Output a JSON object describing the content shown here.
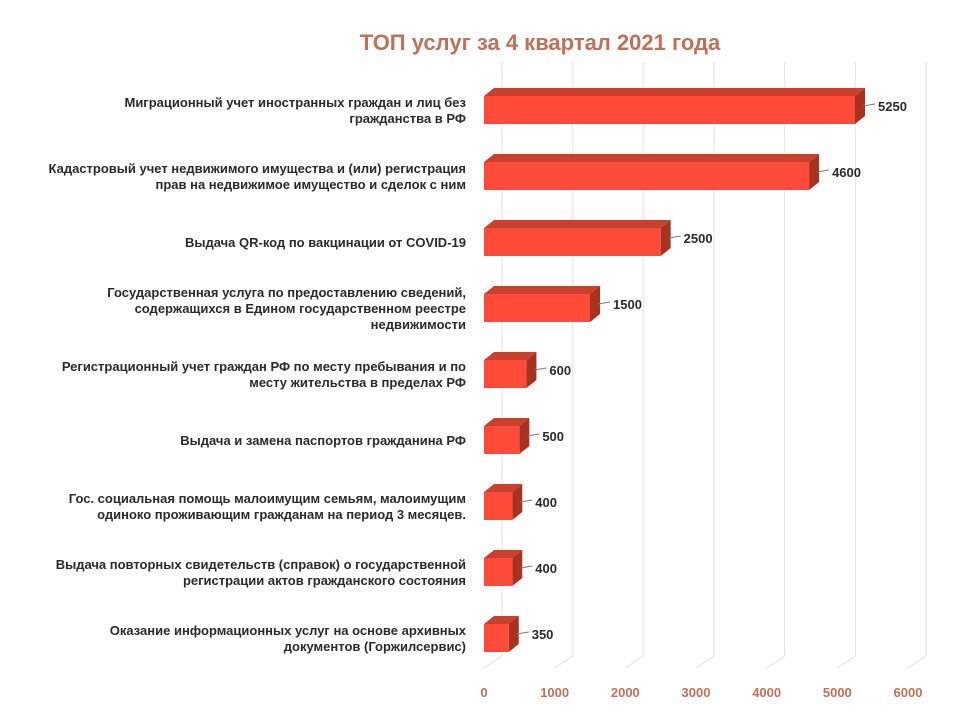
{
  "chart_data": {
    "type": "bar",
    "orientation": "horizontal",
    "title": "ТОП услуг за 4 квартал 2021 года",
    "xlabel": "",
    "ylabel": "",
    "xlim": [
      0,
      6000
    ],
    "ticks": [
      0,
      1000,
      2000,
      3000,
      4000,
      5000,
      6000
    ],
    "grid": true,
    "legend": "none",
    "colors": {
      "bar_front": "#ff4b38",
      "bar_top": "#c9402f",
      "bar_side": "#a8321f",
      "title": "#c0715a",
      "tick": "#c0715a"
    },
    "categories": [
      [
        "Миграционный учет иностранных граждан и лиц без",
        "гражданства в РФ"
      ],
      [
        "Кадастровый учет недвижимого имущества и (или)  регистрация",
        "прав на недвижимое имущество и сделок с ним"
      ],
      [
        "Выдача QR-код по вакцинации от COVID-19"
      ],
      [
        "Государственная услуга по предоставлению сведений,",
        "содержащихся в Едином государственном реестре",
        "недвижимости"
      ],
      [
        "Регистрационный учет граждан РФ по месту пребывания и по",
        "месту жительства в пределах РФ"
      ],
      [
        "Выдача и замена паспортов гражданина РФ"
      ],
      [
        "Гос. социальная помощь малоимущим семьям, малоимущим",
        "одиноко проживающим гражданам на период 3 месяцев."
      ],
      [
        "Выдача повторных свидетельств (справок) о государственной",
        "регистрации актов гражданского состояния"
      ],
      [
        "Оказание информационных услуг на основе архивных",
        "документов (Горжилсервис)"
      ]
    ],
    "values": [
      5250,
      4600,
      2500,
      1500,
      600,
      500,
      400,
      400,
      350
    ],
    "value_labels": [
      "5250",
      "4600",
      "2500",
      "1500",
      "600",
      "500",
      "400",
      "400",
      "350"
    ]
  }
}
